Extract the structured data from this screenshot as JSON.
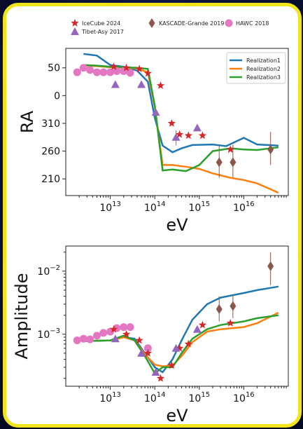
{
  "chart_data": [
    {
      "type": "line",
      "xscale": "log",
      "xlim": [
        1000000000000.0,
        1e+17
      ],
      "ylim": [
        180,
        85
      ],
      "xticklabels": [
        "10^13",
        "10^14",
        "10^15",
        "10^16"
      ],
      "yticks": [
        50,
        0,
        310,
        260,
        210
      ],
      "xlabel": "eV",
      "ylabel": "RA",
      "legend_top": [
        {
          "name": "IceCube 2024",
          "marker": "star",
          "color": "#d62728"
        },
        {
          "name": "Tibet-Asy 2017",
          "marker": "triangle",
          "color": "#9467bd"
        },
        {
          "name": "KASCADE-Grande 2019",
          "marker": "diamond",
          "color": "#8c564b"
        },
        {
          "name": "HAWC 2018",
          "marker": "circle",
          "color": "#e377c2"
        }
      ],
      "legend_lines": [
        {
          "name": "Realization1",
          "color": "#1f77b4"
        },
        {
          "name": "Realization2",
          "color": "#ff7f0e"
        },
        {
          "name": "Realization3",
          "color": "#2ca02c"
        }
      ],
      "series": [
        {
          "name": "Realization1",
          "color": "#1f77b4",
          "x": [
            2500000000000.0,
            5000000000000.0,
            10000000000000.0,
            20000000000000.0,
            40000000000000.0,
            70000000000000.0,
            100000000000000.0,
            150000000000000.0,
            250000000000000.0,
            400000000000000.0,
            700000000000000.0,
            2000000000000000.0,
            4000000000000000.0,
            1e+16,
            2e+16,
            6e+16
          ],
          "y": [
            75,
            72,
            55,
            52,
            45,
            25,
            -40,
            -90,
            -102,
            -95,
            -89,
            -88,
            -91,
            -76,
            -88,
            -90
          ]
        },
        {
          "name": "Realization2",
          "color": "#ff7f0e",
          "x": [
            2500000000000.0,
            5000000000000.0,
            10000000000000.0,
            20000000000000.0,
            40000000000000.0,
            70000000000000.0,
            100000000000000.0,
            150000000000000.0,
            250000000000000.0,
            500000000000000.0,
            1000000000000000.0,
            2000000000000000.0,
            5000000000000000.0,
            1e+16,
            2e+16,
            6e+16
          ],
          "y": [
            54,
            53,
            51,
            50,
            49,
            42,
            -20,
            -125,
            -125,
            -128,
            -132,
            -140,
            -148,
            -152,
            -158,
            -175
          ]
        },
        {
          "name": "Realization3",
          "color": "#2ca02c",
          "x": [
            2500000000000.0,
            5000000000000.0,
            10000000000000.0,
            20000000000000.0,
            40000000000000.0,
            70000000000000.0,
            100000000000000.0,
            150000000000000.0,
            250000000000000.0,
            500000000000000.0,
            1000000000000000.0,
            2000000000000000.0,
            5000000000000000.0,
            1e+16,
            2e+16,
            6e+16
          ],
          "y": [
            55,
            54,
            52,
            51,
            50,
            48,
            -18,
            -135,
            -133,
            -136,
            -125,
            -100,
            -95,
            -97,
            -98,
            -93
          ]
        }
      ],
      "markers": [
        {
          "set": "HAWC 2018",
          "x": [
            1800000000000.0,
            2500000000000.0,
            3500000000000.0,
            5000000000000.0,
            7000000000000.0,
            10000000000000.0,
            14000000000000.0,
            20000000000000.0,
            28000000000000.0
          ],
          "y": [
            42,
            50,
            46,
            42,
            42,
            42,
            44,
            44,
            41
          ]
        },
        {
          "set": "IceCube 2024",
          "x": [
            12000000000000.0,
            23000000000000.0,
            45000000000000.0,
            70000000000000.0,
            135000000000000.0,
            240000000000000.0,
            360000000000000.0,
            570000000000000.0,
            1180000000000000.0,
            5000000000000000.0
          ],
          "y": [
            52,
            50,
            48,
            40,
            18,
            -50,
            -70,
            -72,
            -72,
            -97
          ]
        },
        {
          "set": "Tibet-Asy 2017",
          "x": [
            13000000000000.0,
            50000000000000.0,
            105000000000000.0,
            300000000000000.0,
            900000000000000.0
          ],
          "y": [
            20,
            20,
            -30,
            -75,
            -58
          ]
        },
        {
          "set": "KASCADE-Grande 2019",
          "x": [
            2800000000000000.0,
            5700000000000000.0,
            4e+16
          ],
          "y": [
            -120,
            -120,
            -97
          ]
        }
      ]
    },
    {
      "type": "line",
      "xscale": "log",
      "yscale": "log",
      "xlim": [
        1000000000000.0,
        1e+17
      ],
      "ylim": [
        0.00015,
        0.025
      ],
      "xticklabels": [
        "10^13",
        "10^14",
        "10^15",
        "10^16"
      ],
      "yticklabels": [
        "10^-2",
        "10^-3"
      ],
      "xlabel": "eV",
      "ylabel": "Amplitude",
      "series": [
        {
          "name": "Realization1",
          "color": "#1f77b4",
          "x": [
            2500000000000.0,
            5000000000000.0,
            10000000000000.0,
            20000000000000.0,
            35000000000000.0,
            60000000000000.0,
            100000000000000.0,
            150000000000000.0,
            250000000000000.0,
            400000000000000.0,
            700000000000000.0,
            1500000000000000.0,
            3000000000000000.0,
            1e+16,
            2e+16,
            6e+16
          ],
          "y": [
            0.00078,
            0.00079,
            0.0008,
            0.0009,
            0.00085,
            0.0005,
            0.0003,
            0.00025,
            0.0004,
            0.0008,
            0.0017,
            0.003,
            0.0038,
            0.0045,
            0.005,
            0.0057
          ]
        },
        {
          "name": "Realization2",
          "color": "#ff7f0e",
          "x": [
            2500000000000.0,
            5000000000000.0,
            10000000000000.0,
            20000000000000.0,
            35000000000000.0,
            60000000000000.0,
            100000000000000.0,
            150000000000000.0,
            250000000000000.0,
            400000000000000.0,
            700000000000000.0,
            1500000000000000.0,
            3000000000000000.0,
            1e+16,
            2e+16,
            6e+16
          ],
          "y": [
            0.00078,
            0.00079,
            0.0008,
            0.0009,
            0.0008,
            0.00048,
            0.00033,
            0.00031,
            0.00032,
            0.00045,
            0.00075,
            0.0011,
            0.0012,
            0.0013,
            0.0015,
            0.0022
          ]
        },
        {
          "name": "Realization3",
          "color": "#2ca02c",
          "x": [
            2500000000000.0,
            5000000000000.0,
            10000000000000.0,
            20000000000000.0,
            35000000000000.0,
            60000000000000.0,
            100000000000000.0,
            150000000000000.0,
            250000000000000.0,
            400000000000000.0,
            700000000000000.0,
            1500000000000000.0,
            3000000000000000.0,
            1e+16,
            2e+16,
            6e+16
          ],
          "y": [
            0.00078,
            0.00079,
            0.0008,
            0.00095,
            0.0008,
            0.00045,
            0.00024,
            0.0003,
            0.0003,
            0.0005,
            0.00085,
            0.0012,
            0.0014,
            0.0016,
            0.0018,
            0.002
          ]
        }
      ],
      "markers": [
        {
          "set": "HAWC 2018",
          "x": [
            1800000000000.0,
            2500000000000.0,
            3500000000000.0,
            5000000000000.0,
            7000000000000.0,
            10000000000000.0,
            14000000000000.0,
            20000000000000.0,
            28000000000000.0,
            70000000000000.0
          ],
          "y": [
            0.0008,
            0.00085,
            0.00083,
            0.00095,
            0.00105,
            0.0011,
            0.00125,
            0.0013,
            0.0013,
            0.0006
          ]
        },
        {
          "set": "IceCube 2024",
          "x": [
            12000000000000.0,
            23000000000000.0,
            45000000000000.0,
            70000000000000.0,
            135000000000000.0,
            240000000000000.0,
            360000000000000.0,
            570000000000000.0,
            1180000000000000.0,
            5000000000000000.0
          ],
          "y": [
            0.0012,
            0.001,
            0.0008,
            0.0005,
            0.0002,
            0.00032,
            0.0006,
            0.0007,
            0.0014,
            0.0015
          ]
        },
        {
          "set": "Tibet-Asy 2017",
          "x": [
            13000000000000.0,
            50000000000000.0,
            105000000000000.0,
            300000000000000.0,
            900000000000000.0
          ],
          "y": [
            0.00085,
            0.0005,
            0.00025,
            0.0006,
            0.0012
          ]
        },
        {
          "set": "KASCADE-Grande 2019",
          "x": [
            2800000000000000.0,
            5700000000000000.0,
            4e+16
          ],
          "y": [
            0.0025,
            0.0028,
            0.012
          ],
          "err": [
            [
              0.0016,
              0.004
            ],
            [
              0.0018,
              0.0042
            ],
            [
              0.006,
              0.02
            ]
          ]
        }
      ]
    }
  ]
}
